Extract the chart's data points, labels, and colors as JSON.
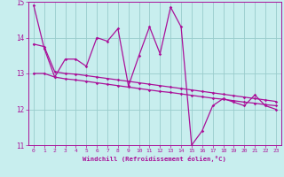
{
  "xlabel": "Windchill (Refroidissement éolien,°C)",
  "x": [
    0,
    1,
    2,
    3,
    4,
    5,
    6,
    7,
    8,
    9,
    10,
    11,
    12,
    13,
    14,
    15,
    16,
    17,
    18,
    19,
    20,
    21,
    22,
    23
  ],
  "line1": [
    14.9,
    13.7,
    12.9,
    13.4,
    13.4,
    13.2,
    14.0,
    13.9,
    14.25,
    12.65,
    13.5,
    14.3,
    13.55,
    14.85,
    14.3,
    11.0,
    11.4,
    12.1,
    12.3,
    12.2,
    12.1,
    12.4,
    12.1,
    12.0
  ],
  "line2": [
    13.0,
    13.0,
    12.9,
    12.85,
    12.82,
    12.78,
    12.74,
    12.7,
    12.66,
    12.62,
    12.58,
    12.54,
    12.5,
    12.47,
    12.43,
    12.39,
    12.35,
    12.31,
    12.28,
    12.24,
    12.2,
    12.17,
    12.13,
    12.1
  ],
  "line3": [
    13.82,
    13.75,
    13.05,
    13.0,
    12.98,
    12.94,
    12.9,
    12.86,
    12.82,
    12.78,
    12.74,
    12.7,
    12.66,
    12.62,
    12.58,
    12.54,
    12.5,
    12.46,
    12.42,
    12.38,
    12.34,
    12.3,
    12.26,
    12.22
  ],
  "ylim": [
    11,
    15
  ],
  "xlim_min": -0.5,
  "xlim_max": 23.5,
  "yticks": [
    11,
    12,
    13,
    14,
    15
  ],
  "xticks": [
    0,
    1,
    2,
    3,
    4,
    5,
    6,
    7,
    8,
    9,
    10,
    11,
    12,
    13,
    14,
    15,
    16,
    17,
    18,
    19,
    20,
    21,
    22,
    23
  ],
  "line_color": "#AA1199",
  "bg_color": "#C8EEEE",
  "grid_color": "#99CCCC",
  "tick_color": "#AA1199",
  "label_color": "#AA1199",
  "marker": "D",
  "markersize": 1.8,
  "linewidth": 0.9
}
